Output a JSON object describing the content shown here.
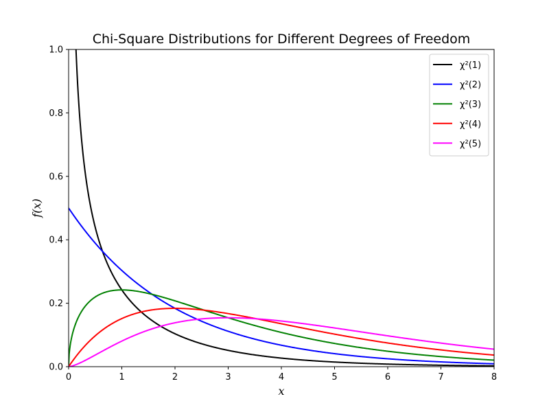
{
  "chart_data": {
    "type": "line",
    "title": "Chi-Square Distributions for Different Degrees of Freedom",
    "xlabel": "x",
    "ylabel": "f(x)",
    "xlim": [
      0,
      8
    ],
    "ylim": [
      0,
      1.0
    ],
    "xticks": [
      "0",
      "1",
      "2",
      "3",
      "4",
      "5",
      "6",
      "7",
      "8"
    ],
    "yticks": [
      "0.0",
      "0.2",
      "0.4",
      "0.6",
      "0.8",
      "1.0"
    ],
    "grid": false,
    "legend_position": "top-right",
    "series": [
      {
        "name": "χ²(1)",
        "df": 1,
        "color": "#000000"
      },
      {
        "name": "χ²(2)",
        "df": 2,
        "color": "#0000ff"
      },
      {
        "name": "χ²(3)",
        "df": 3,
        "color": "#008000"
      },
      {
        "name": "χ²(4)",
        "df": 4,
        "color": "#ff0000"
      },
      {
        "name": "χ²(5)",
        "df": 5,
        "color": "#ff00ff"
      }
    ]
  }
}
